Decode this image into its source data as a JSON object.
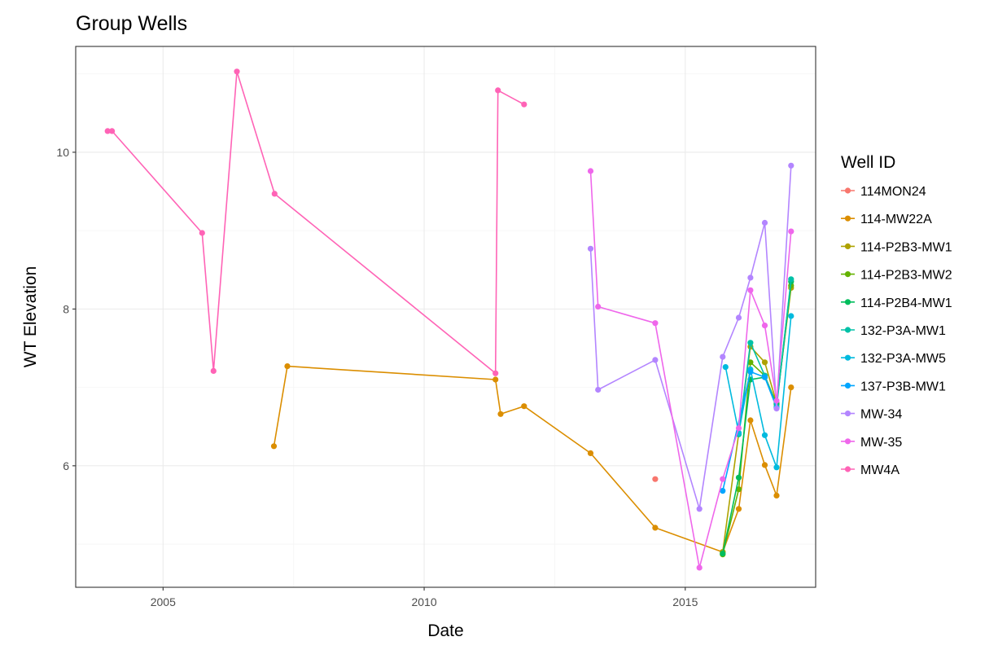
{
  "chart_data": {
    "type": "line",
    "title": "Group Wells",
    "xlabel": "Date",
    "ylabel": "WT Elevation",
    "xlim": [
      "2003-05-01",
      "2017-07-01"
    ],
    "ylim": [
      4.45,
      11.35
    ],
    "x_ticks": [
      {
        "label": "2005",
        "value": "2005-01-01"
      },
      {
        "label": "2010",
        "value": "2010-01-01"
      },
      {
        "label": "2015",
        "value": "2015-01-01"
      }
    ],
    "y_ticks": [
      {
        "label": "6",
        "value": 6
      },
      {
        "label": "8",
        "value": 8
      },
      {
        "label": "10",
        "value": 10
      }
    ],
    "grid": true,
    "legend": {
      "title": "Well ID",
      "position": "right"
    },
    "series": [
      {
        "name": "114MON24",
        "color": "#F8766D",
        "points": [
          [
            "2014-06-05",
            5.83
          ]
        ]
      },
      {
        "name": "114-MW22A",
        "color": "#DB8E00",
        "points": [
          [
            "2007-02-15",
            6.25
          ],
          [
            "2007-05-20",
            7.27
          ],
          [
            "2011-05-15",
            7.1
          ],
          [
            "2011-06-20",
            6.66
          ],
          [
            "2011-12-01",
            6.76
          ],
          [
            "2013-03-10",
            6.16
          ],
          [
            "2014-06-05",
            5.21
          ],
          [
            "2015-09-20",
            4.9
          ],
          [
            "2016-01-10",
            5.45
          ],
          [
            "2016-04-01",
            6.58
          ],
          [
            "2016-07-10",
            6.01
          ],
          [
            "2016-10-01",
            5.62
          ],
          [
            "2017-01-10",
            7.0
          ]
        ]
      },
      {
        "name": "114-P2B3-MW1",
        "color": "#AEA200",
        "points": [
          [
            "2015-09-20",
            4.9
          ],
          [
            "2016-04-01",
            7.52
          ],
          [
            "2016-07-10",
            7.32
          ],
          [
            "2016-10-01",
            6.8
          ],
          [
            "2017-01-10",
            8.27
          ]
        ]
      },
      {
        "name": "114-P2B3-MW2",
        "color": "#64B200",
        "points": [
          [
            "2015-09-20",
            4.87
          ],
          [
            "2016-01-10",
            5.7
          ],
          [
            "2016-04-01",
            7.32
          ],
          [
            "2016-07-10",
            7.15
          ],
          [
            "2016-10-01",
            6.78
          ],
          [
            "2017-01-10",
            8.3
          ]
        ]
      },
      {
        "name": "114-P2B4-MW1",
        "color": "#00BD5C",
        "points": [
          [
            "2015-09-20",
            4.88
          ],
          [
            "2016-01-10",
            5.85
          ],
          [
            "2016-04-01",
            7.1
          ],
          [
            "2016-07-10",
            7.13
          ],
          [
            "2016-10-01",
            6.79
          ],
          [
            "2017-01-10",
            8.35
          ]
        ]
      },
      {
        "name": "132-P3A-MW1",
        "color": "#00C1A7",
        "points": [
          [
            "2016-01-10",
            6.4
          ],
          [
            "2016-04-01",
            7.57
          ],
          [
            "2016-07-10",
            7.15
          ],
          [
            "2016-10-01",
            6.75
          ],
          [
            "2017-01-10",
            8.38
          ]
        ]
      },
      {
        "name": "132-P3A-MW5",
        "color": "#00BADE",
        "points": [
          [
            "2015-10-10",
            7.26
          ],
          [
            "2016-01-10",
            6.42
          ],
          [
            "2016-04-01",
            7.23
          ],
          [
            "2016-07-10",
            6.39
          ],
          [
            "2016-10-01",
            5.98
          ],
          [
            "2017-01-10",
            7.91
          ]
        ]
      },
      {
        "name": "137-P3B-MW1",
        "color": "#00A6FF",
        "points": [
          [
            "2015-09-20",
            5.68
          ],
          [
            "2016-04-01",
            7.2
          ],
          [
            "2016-07-10",
            7.13
          ],
          [
            "2016-10-01",
            6.74
          ]
        ]
      },
      {
        "name": "MW-34",
        "color": "#B385FF",
        "points": [
          [
            "2013-03-10",
            8.77
          ],
          [
            "2013-05-01",
            6.97
          ],
          [
            "2014-06-05",
            7.35
          ],
          [
            "2015-04-10",
            5.45
          ],
          [
            "2015-09-20",
            7.39
          ],
          [
            "2016-01-10",
            7.89
          ],
          [
            "2016-04-01",
            8.4
          ],
          [
            "2016-07-10",
            9.1
          ],
          [
            "2016-10-01",
            6.73
          ],
          [
            "2017-01-10",
            9.83
          ]
        ]
      },
      {
        "name": "MW-35",
        "color": "#EF67EB",
        "points": [
          [
            "2013-03-10",
            9.76
          ],
          [
            "2013-05-01",
            8.03
          ],
          [
            "2014-06-05",
            7.82
          ],
          [
            "2015-04-10",
            4.7
          ],
          [
            "2015-09-20",
            5.83
          ],
          [
            "2016-01-10",
            6.48
          ],
          [
            "2016-04-01",
            8.24
          ],
          [
            "2016-07-10",
            7.79
          ],
          [
            "2016-10-01",
            6.83
          ],
          [
            "2017-01-10",
            8.99
          ]
        ]
      },
      {
        "name": "MW4A",
        "color": "#FF63B6",
        "points": [
          [
            "2003-12-10",
            10.27
          ],
          [
            "2004-01-10",
            10.27
          ],
          [
            "2005-10-01",
            8.97
          ],
          [
            "2005-12-20",
            7.21
          ],
          [
            "2006-06-01",
            11.03
          ],
          [
            "2007-02-20",
            9.47
          ],
          [
            "2011-05-15",
            7.18
          ],
          [
            "2011-06-01",
            10.79
          ],
          [
            "2011-12-01",
            10.61
          ]
        ]
      }
    ]
  }
}
